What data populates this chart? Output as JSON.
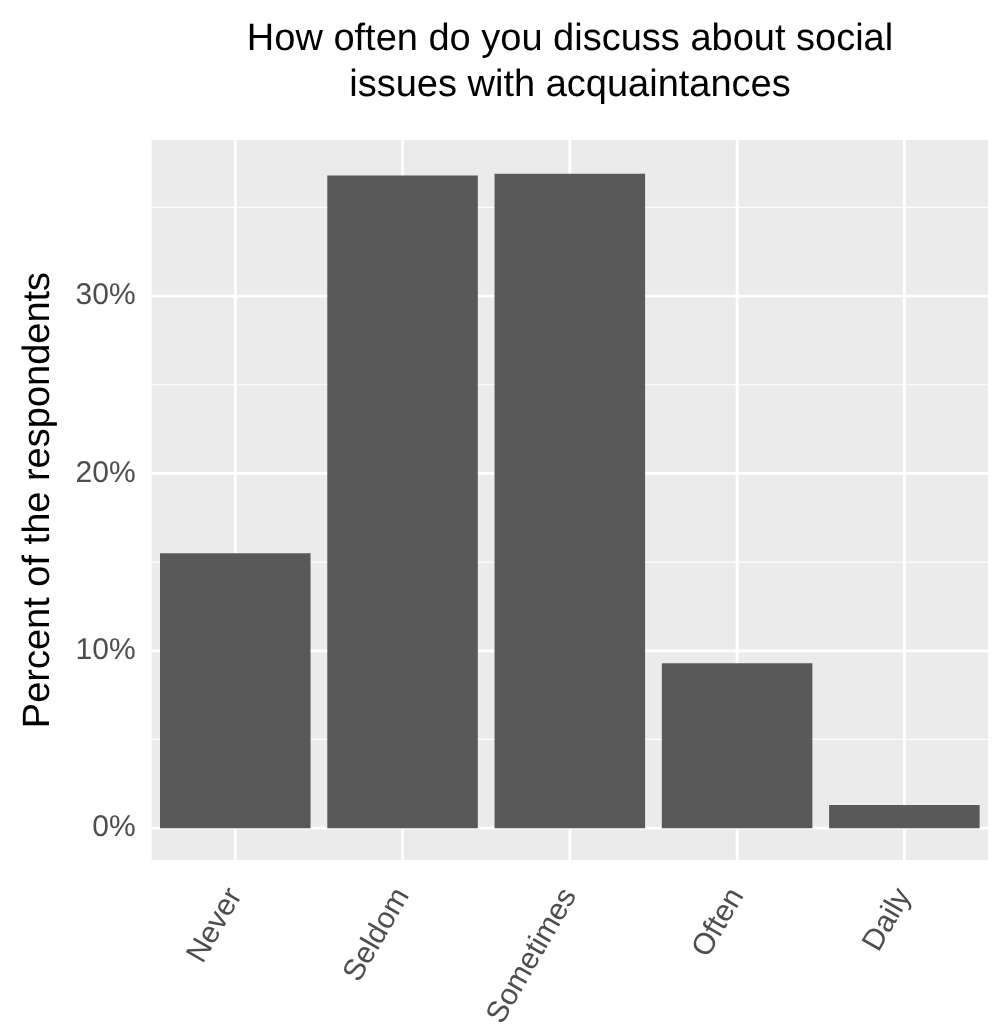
{
  "chart_data": {
    "type": "bar",
    "title": "How often do you discuss about social issues with acquaintances",
    "ylabel": "Percent of the respondents",
    "categories": [
      "Never",
      "Seldom",
      "Sometimes",
      "Often",
      "Daily"
    ],
    "values": [
      15.5,
      36.8,
      36.9,
      9.3,
      1.3
    ],
    "color": "#595959",
    "ylim": [
      -1.8,
      38.8
    ],
    "yticks": [
      {
        "value": 0,
        "label": "0%"
      },
      {
        "value": 10,
        "label": "10%"
      },
      {
        "value": 20,
        "label": "20%"
      },
      {
        "value": 30,
        "label": "30%"
      }
    ],
    "grid": true,
    "legend": false
  }
}
